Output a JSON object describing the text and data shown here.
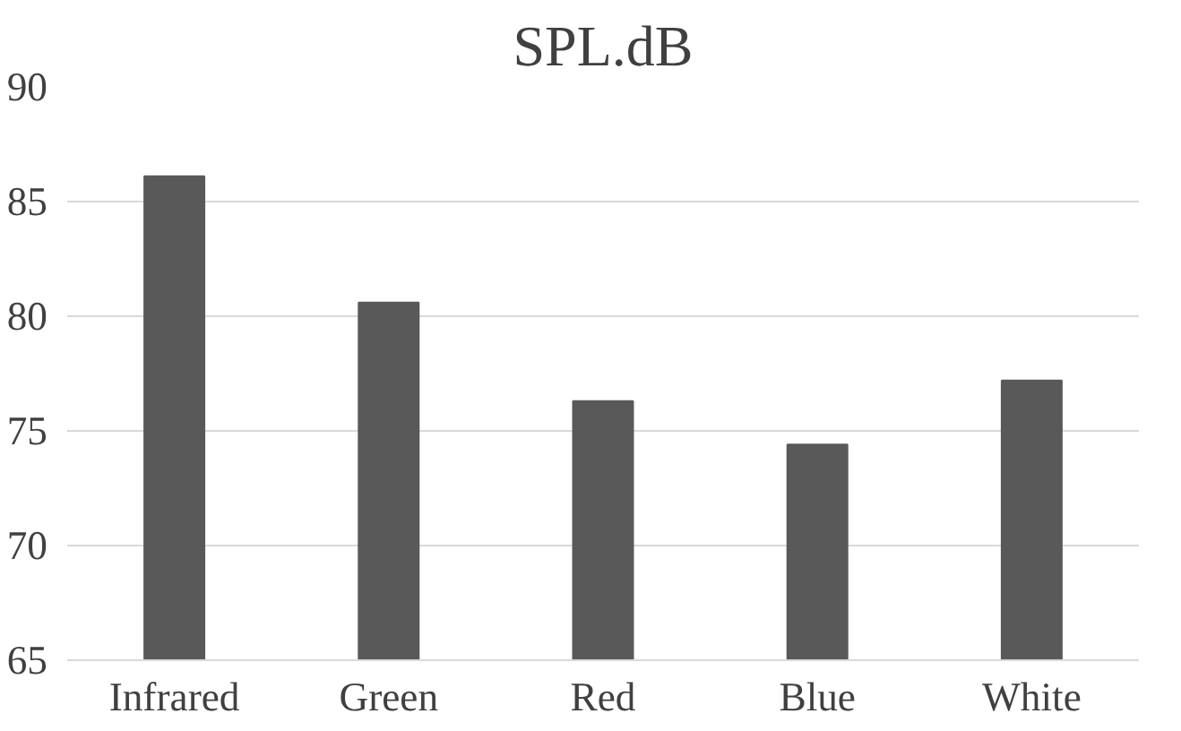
{
  "chart_data": {
    "type": "bar",
    "title": "SPL.dB",
    "categories": [
      "Infrared",
      "Green",
      "Red",
      "Blue",
      "White"
    ],
    "values": [
      86.1,
      80.6,
      76.3,
      74.4,
      77.2
    ],
    "color": "#595959",
    "ylim": [
      65,
      90
    ],
    "yticks": [
      65,
      70,
      75,
      80,
      85,
      90
    ],
    "grid": "y"
  }
}
